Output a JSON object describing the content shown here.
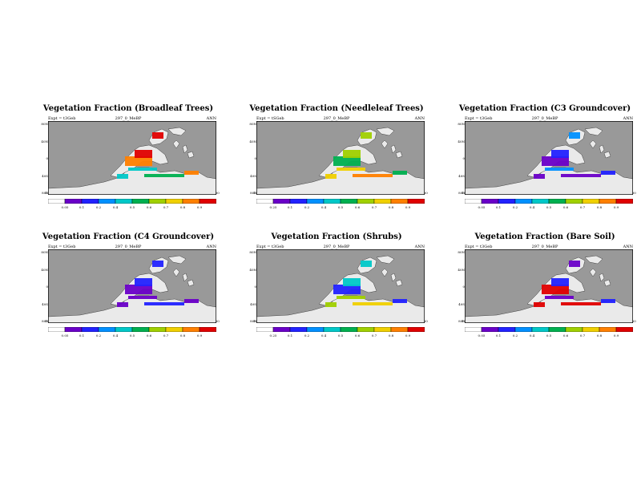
{
  "colors": {
    "ocean": "#999999",
    "land": "#eaeaea",
    "scale": [
      "#ffffff",
      "#6a00c8",
      "#2222ff",
      "#0090ff",
      "#00c8c8",
      "#00b050",
      "#a0d000",
      "#f0d000",
      "#ff8000",
      "#e00000"
    ]
  },
  "chart_data": [
    {
      "type": "heatmap",
      "title": "Vegetation Fraction (Broadleaf Trees)",
      "expt_label": "Expt = t3Geb",
      "subtitle": "297_0_MeBP",
      "period": "ANN",
      "lat_ticks": [
        "80N",
        "40N",
        "0",
        "40S",
        "80S"
      ],
      "lon_ticks": [
        "180",
        "120W",
        "60W",
        "0",
        "60E",
        "120E",
        "180"
      ],
      "colorbar_labels": [
        "0.05",
        "0.1",
        "0.2",
        "0.4",
        "0.5",
        "0.6",
        "0.7",
        "0.8",
        "0.9"
      ],
      "dominant_levels": [
        8,
        9,
        4,
        5
      ]
    },
    {
      "type": "heatmap",
      "title": "Vegetation Fraction (Needleleaf Trees)",
      "expt_label": "Expt = tSGeb",
      "subtitle": "297_0_MeBP",
      "period": "ANN",
      "lat_ticks": [
        "80N",
        "40N",
        "0",
        "40S",
        "80S"
      ],
      "lon_ticks": [
        "180",
        "120W",
        "60W",
        "0",
        "60E",
        "120E",
        "180"
      ],
      "colorbar_labels": [
        "0.25",
        "0.1",
        "0.2",
        "0.4",
        "0.5",
        "0.6",
        "0.7",
        "0.8",
        "0.9"
      ],
      "dominant_levels": [
        5,
        6,
        7,
        8
      ]
    },
    {
      "type": "heatmap",
      "title": "Vegetation Fraction (C3 Groundcover)",
      "expt_label": "Expt = t3Geb",
      "subtitle": "297_0_MeBP",
      "period": "ANN",
      "lat_ticks": [
        "80N",
        "40N",
        "0",
        "40S",
        "80S"
      ],
      "lon_ticks": [
        "180",
        "120W",
        "60W",
        "0",
        "60E",
        "120E",
        "180"
      ],
      "colorbar_labels": [
        "0.05",
        "0.1",
        "0.2",
        "0.4",
        "0.5",
        "0.6",
        "0.7",
        "0.8",
        "0.9"
      ],
      "dominant_levels": [
        1,
        2,
        3
      ]
    },
    {
      "type": "heatmap",
      "title": "Vegetation Fraction (C4 Groundcover)",
      "expt_label": "Expt = t3Geb",
      "subtitle": "297_0_MeBP",
      "period": "ANN",
      "lat_ticks": [
        "80N",
        "40N",
        "0",
        "40S",
        "80S"
      ],
      "lon_ticks": [
        "180",
        "120W",
        "60W",
        "0",
        "60E",
        "120E",
        "180"
      ],
      "colorbar_labels": [
        "0.05",
        "0.1",
        "0.2",
        "0.4",
        "0.5",
        "0.6",
        "0.7",
        "0.8",
        "0.9"
      ],
      "dominant_levels": [
        1,
        2
      ]
    },
    {
      "type": "heatmap",
      "title": "Vegetation Fraction (Shrubs)",
      "expt_label": "Expt = t3Geb",
      "subtitle": "297_0_MeBP",
      "period": "ANN",
      "lat_ticks": [
        "80N",
        "40N",
        "0",
        "40S",
        "80S"
      ],
      "lon_ticks": [
        "180",
        "120W",
        "60W",
        "0",
        "60E",
        "120E",
        "180"
      ],
      "colorbar_labels": [
        "0.25",
        "0.1",
        "0.2",
        "0.4",
        "0.5",
        "0.6",
        "0.7",
        "0.8",
        "0.9"
      ],
      "dominant_levels": [
        2,
        4,
        6,
        7
      ]
    },
    {
      "type": "heatmap",
      "title": "Vegetation Fraction (Bare Soil)",
      "expt_label": "Expt = t3Geb",
      "subtitle": "297_0_MeBP",
      "period": "ANN",
      "lat_ticks": [
        "80N",
        "40N",
        "0",
        "40S",
        "80S"
      ],
      "lon_ticks": [
        "180",
        "120W",
        "60W",
        "0",
        "60E",
        "120E",
        "180"
      ],
      "colorbar_labels": [
        "0.05",
        "0.1",
        "0.2",
        "0.4",
        "0.5",
        "0.6",
        "0.7",
        "0.8",
        "0.9"
      ],
      "dominant_levels": [
        9,
        2,
        1
      ]
    }
  ]
}
